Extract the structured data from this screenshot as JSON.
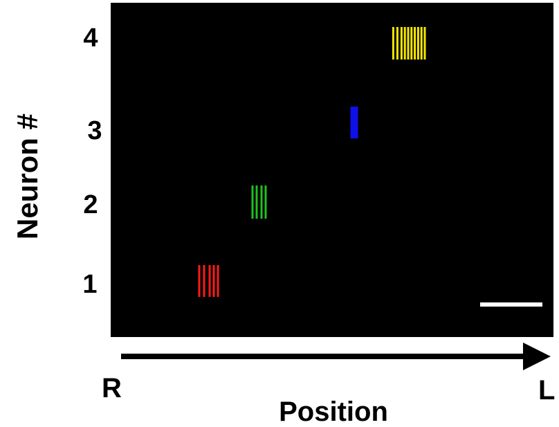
{
  "chart_data": {
    "type": "scatter",
    "title": "",
    "xlabel": "Position",
    "ylabel": "Neuron #",
    "x_direction": {
      "start": "R",
      "end": "L"
    },
    "y_ticks": [
      "1",
      "2",
      "3",
      "4"
    ],
    "background": "#000000",
    "scale_bar_color": "#ffffff",
    "series": [
      {
        "neuron": "1",
        "color": "#ff1a1a",
        "x": [
          0.3,
          1.0,
          1.8,
          2.4,
          3.0
        ]
      },
      {
        "neuron": "2",
        "color": "#20c020",
        "x": [
          0.3,
          0.9,
          1.6,
          2.2
        ]
      },
      {
        "neuron": "3",
        "color": "#1010e8",
        "x": [
          0.0,
          0.2,
          0.4,
          0.6,
          0.8
        ]
      },
      {
        "neuron": "4",
        "color": "#f5e600",
        "x": [
          0.2,
          0.7,
          1.2,
          1.6,
          2.0,
          2.4,
          2.8,
          3.2,
          3.6,
          4.0
        ]
      }
    ]
  }
}
